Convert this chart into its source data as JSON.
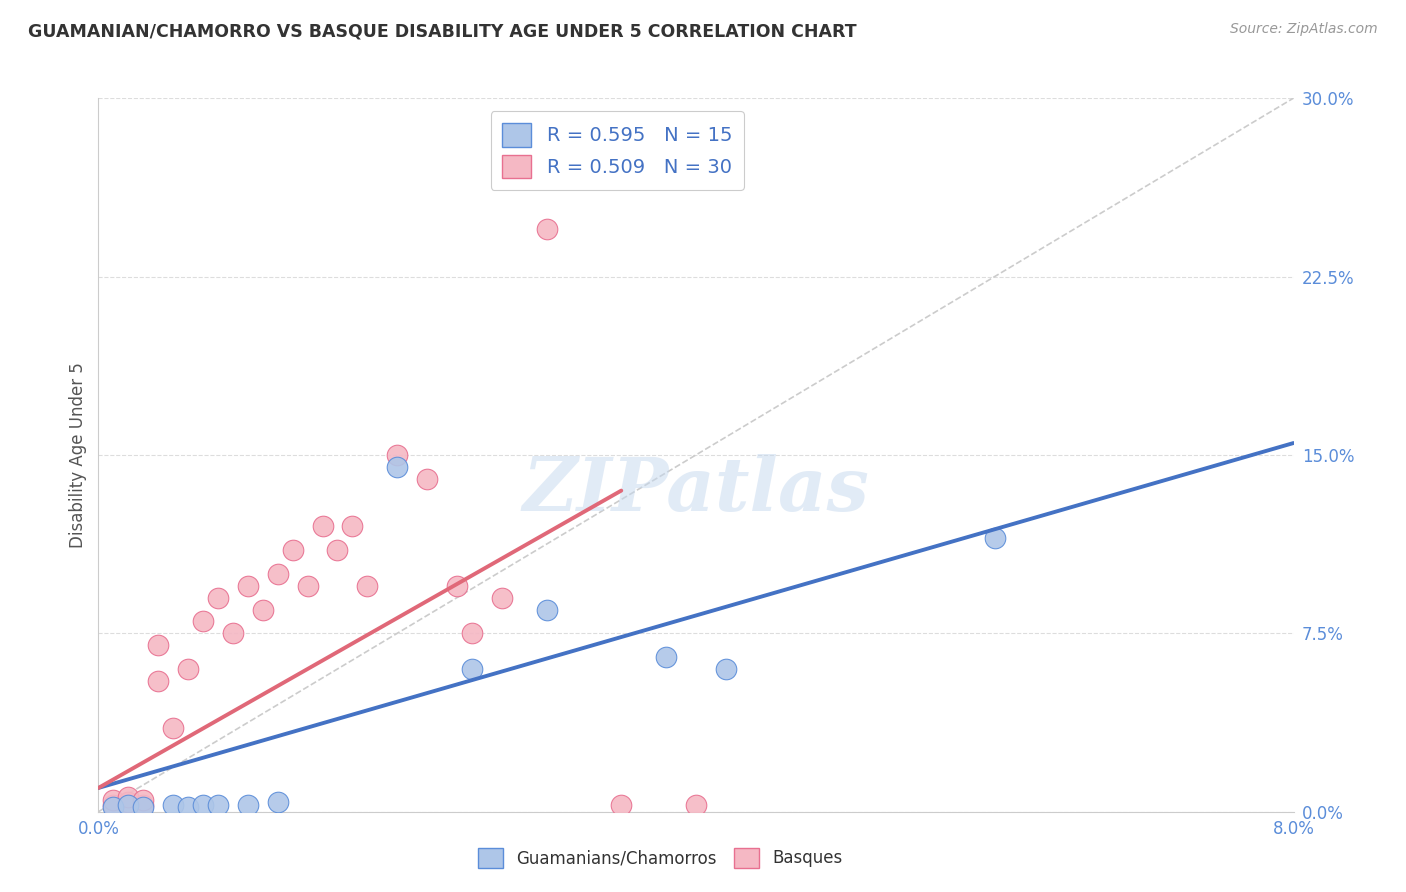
{
  "title": "GUAMANIAN/CHAMORRO VS BASQUE DISABILITY AGE UNDER 5 CORRELATION CHART",
  "source": "Source: ZipAtlas.com",
  "ylabel_label": "Disability Age Under 5",
  "xmin": 0.0,
  "xmax": 0.08,
  "ymin": 0.0,
  "ymax": 0.3,
  "xtick_positions": [
    0.0,
    0.02,
    0.04,
    0.06,
    0.08
  ],
  "xtick_labels": [
    "0.0%",
    "",
    "",
    "",
    "8.0%"
  ],
  "ytick_labels": [
    "0.0%",
    "7.5%",
    "15.0%",
    "22.5%",
    "30.0%"
  ],
  "ytick_values": [
    0.0,
    0.075,
    0.15,
    0.225,
    0.3
  ],
  "blue_label": "Guamanians/Chamorros",
  "pink_label": "Basques",
  "blue_R": "0.595",
  "blue_N": "15",
  "pink_R": "0.509",
  "pink_N": "30",
  "blue_fill": "#aec6e8",
  "pink_fill": "#f5b8c4",
  "blue_edge": "#5b8dd9",
  "pink_edge": "#e87090",
  "blue_line": "#4472c4",
  "pink_line": "#e06878",
  "diag_color": "#cccccc",
  "watermark": "ZIPatlas",
  "blue_scatter_x": [
    0.001,
    0.002,
    0.003,
    0.005,
    0.006,
    0.007,
    0.008,
    0.01,
    0.012,
    0.02,
    0.025,
    0.03,
    0.038,
    0.042,
    0.06
  ],
  "blue_scatter_y": [
    0.002,
    0.003,
    0.002,
    0.003,
    0.002,
    0.003,
    0.003,
    0.003,
    0.004,
    0.145,
    0.06,
    0.085,
    0.065,
    0.06,
    0.115
  ],
  "pink_scatter_x": [
    0.001,
    0.001,
    0.002,
    0.002,
    0.003,
    0.003,
    0.004,
    0.004,
    0.005,
    0.006,
    0.007,
    0.008,
    0.009,
    0.01,
    0.011,
    0.012,
    0.013,
    0.014,
    0.015,
    0.016,
    0.017,
    0.018,
    0.02,
    0.022,
    0.024,
    0.025,
    0.027,
    0.03,
    0.035,
    0.04
  ],
  "pink_scatter_y": [
    0.003,
    0.005,
    0.004,
    0.006,
    0.003,
    0.005,
    0.055,
    0.07,
    0.035,
    0.06,
    0.08,
    0.09,
    0.075,
    0.095,
    0.085,
    0.1,
    0.11,
    0.095,
    0.12,
    0.11,
    0.12,
    0.095,
    0.15,
    0.14,
    0.095,
    0.075,
    0.09,
    0.245,
    0.003,
    0.003
  ],
  "blue_trend_x": [
    0.0,
    0.08
  ],
  "blue_trend_y": [
    0.01,
    0.155
  ],
  "pink_trend_x": [
    0.0,
    0.035
  ],
  "pink_trend_y": [
    0.01,
    0.135
  ],
  "background_color": "#ffffff",
  "grid_color": "#dddddd",
  "title_color": "#333333",
  "source_color": "#999999",
  "tick_color": "#5b8dd9",
  "ylabel_color": "#555555"
}
